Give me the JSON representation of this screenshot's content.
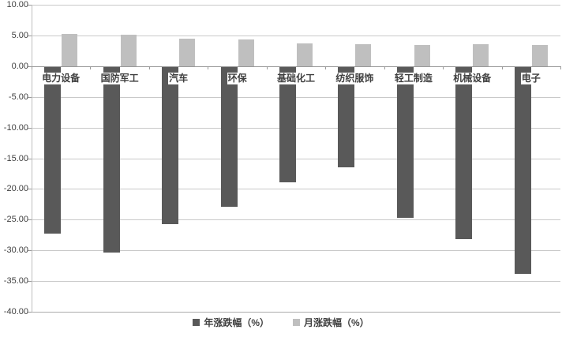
{
  "chart_data": {
    "type": "bar",
    "title": "",
    "xlabel": "",
    "ylabel": "",
    "categories": [
      "电力设备",
      "国防军工",
      "汽车",
      "环保",
      "基础化工",
      "纺织服饰",
      "轻工制造",
      "机械设备",
      "电子"
    ],
    "series": [
      {
        "name": "年涨跌幅（%）",
        "color": "#595959",
        "values": [
          -27.1,
          -30.3,
          -25.6,
          -22.8,
          -18.8,
          -16.4,
          -24.6,
          -28.0,
          -33.7
        ]
      },
      {
        "name": "月涨跌幅（%）",
        "color": "#bfbfbf",
        "values": [
          5.2,
          5.1,
          4.5,
          4.3,
          3.7,
          3.6,
          3.5,
          3.6,
          3.4
        ]
      }
    ],
    "ylim": [
      -40,
      10
    ],
    "yticks": [
      10,
      5,
      0,
      -5,
      -10,
      -15,
      -20,
      -25,
      -30,
      -35,
      -40
    ],
    "ytick_labels": [
      "10.00",
      "5.00",
      "0.00",
      "-5.00",
      "-10.00",
      "-15.00",
      "-20.00",
      "-25.00",
      "-30.00",
      "-35.00",
      "-40.00"
    ],
    "grid": true,
    "legend_position": "bottom"
  },
  "colors": {
    "background": "#ffffff",
    "gridline": "#c9c9c9",
    "zero_line": "#999999",
    "axis_line": "#bfbfbf",
    "text": "#3f3f3f",
    "series_year": "#595959",
    "series_month": "#bfbfbf"
  }
}
